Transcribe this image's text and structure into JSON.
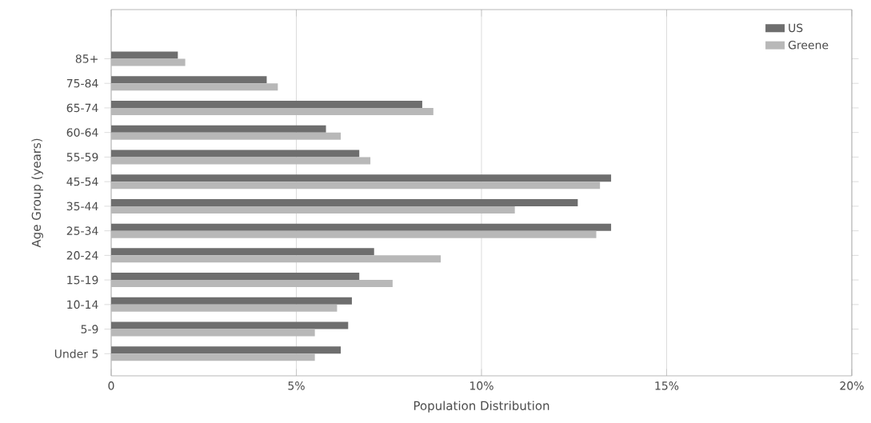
{
  "chart_data": {
    "type": "bar",
    "orientation": "horizontal",
    "xlabel": "Population Distribution",
    "ylabel": "Age Group (years)",
    "categories": [
      "85+",
      "75-84",
      "65-74",
      "60-64",
      "55-59",
      "45-54",
      "35-44",
      "25-34",
      "20-24",
      "15-19",
      "10-14",
      "5-9",
      "Under 5"
    ],
    "series": [
      {
        "name": "US",
        "color": "#6e6e6e",
        "values": [
          1.8,
          4.2,
          8.4,
          5.8,
          6.7,
          13.5,
          12.6,
          13.5,
          7.1,
          6.7,
          6.5,
          6.4,
          6.2
        ]
      },
      {
        "name": "Greene",
        "color": "#b8b8b8",
        "values": [
          2.0,
          4.5,
          8.7,
          6.2,
          7.0,
          13.2,
          10.9,
          13.1,
          8.9,
          7.6,
          6.1,
          5.5,
          5.5
        ]
      }
    ],
    "xlim": [
      0,
      20
    ],
    "xticks": [
      0,
      {
        "value": 5,
        "label": "5%"
      },
      {
        "value": 10,
        "label": "10%"
      },
      {
        "value": 15,
        "label": "15%"
      },
      {
        "value": 20,
        "label": "20%"
      }
    ],
    "grid": "x",
    "legend": "top right"
  }
}
